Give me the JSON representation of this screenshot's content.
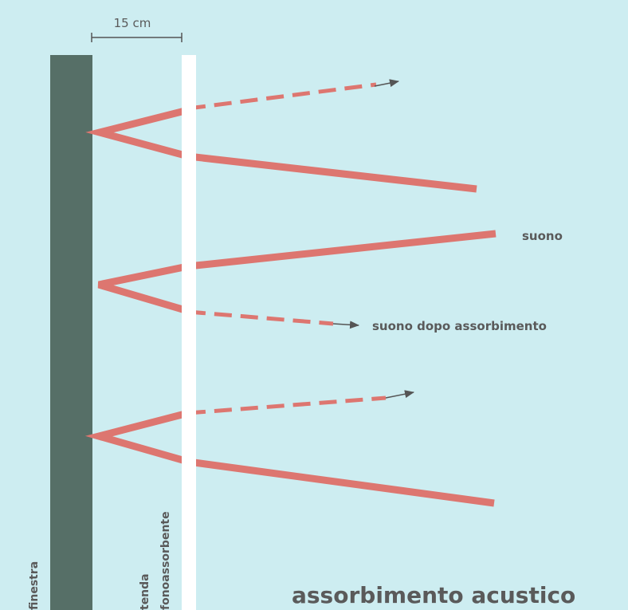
{
  "title": "assorbimento acustico",
  "dimension_label": "15 cm",
  "labels": {
    "window": "finestra",
    "curtain_line1": "tenda",
    "curtain_line2": "fonoassorbente",
    "sound": "suono",
    "sound_after": "suono dopo assorbimento"
  },
  "colors": {
    "background": "#cdedf1",
    "window": "#566f67",
    "curtain": "#ffffff",
    "sound_ray": "#dd7670",
    "arrow": "#555555",
    "text": "#5a5a5a"
  }
}
